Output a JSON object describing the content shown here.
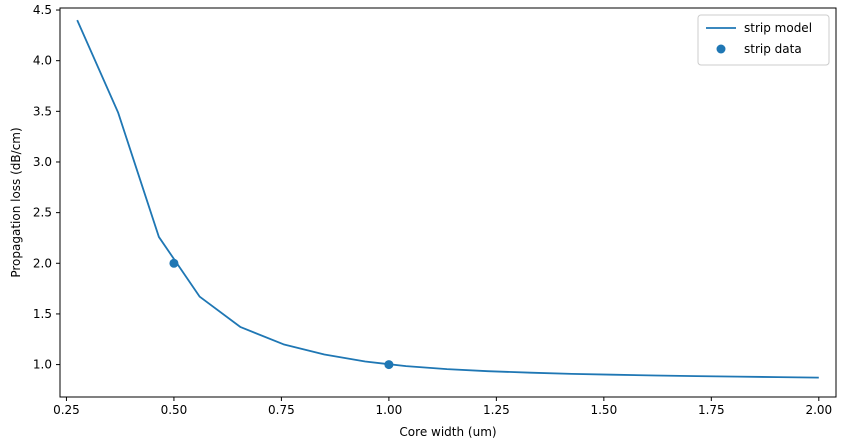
{
  "chart_data": {
    "type": "line",
    "title": "",
    "xlabel": "Core width (um)",
    "ylabel": "Propagation loss (dB/cm)",
    "xlim": [
      0.235,
      2.04
    ],
    "ylim": [
      0.68,
      4.52
    ],
    "x_ticks": [
      "0.25",
      "0.50",
      "0.75",
      "1.00",
      "1.25",
      "1.50",
      "1.75",
      "2.00"
    ],
    "y_ticks": [
      "1.0",
      "1.5",
      "2.0",
      "2.5",
      "3.0",
      "3.5",
      "4.0",
      "4.5"
    ],
    "x_tick_values": [
      0.25,
      0.5,
      0.75,
      1.0,
      1.25,
      1.5,
      1.75,
      2.0
    ],
    "y_tick_values": [
      1.0,
      1.5,
      2.0,
      2.5,
      3.0,
      3.5,
      4.0,
      4.5
    ],
    "grid": false,
    "legend_position": "top-right",
    "series": [
      {
        "name": "strip model",
        "kind": "line",
        "color": "#1f77b4",
        "x": [
          0.275,
          0.37,
          0.465,
          0.56,
          0.655,
          0.755,
          0.85,
          0.945,
          1.04,
          1.135,
          1.23,
          1.33,
          1.425,
          1.52,
          1.62,
          1.715,
          1.81,
          1.905,
          2.0
        ],
        "y": [
          4.4,
          3.49,
          2.26,
          1.67,
          1.37,
          1.2,
          1.1,
          1.03,
          0.985,
          0.955,
          0.935,
          0.92,
          0.908,
          0.9,
          0.892,
          0.886,
          0.881,
          0.876,
          0.871
        ]
      },
      {
        "name": "strip data",
        "kind": "scatter",
        "color": "#1f77b4",
        "x": [
          0.5,
          1.0
        ],
        "y": [
          2.0,
          1.0
        ]
      }
    ]
  }
}
